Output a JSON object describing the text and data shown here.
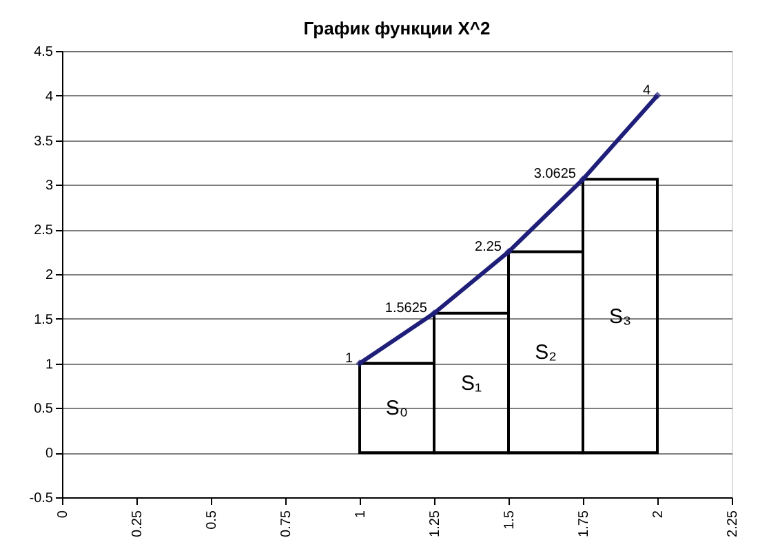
{
  "chart_data": {
    "type": "line",
    "title": "График функции X^2",
    "series": [
      {
        "type": "bar",
        "color": "#000000",
        "x": [
          1.125,
          1.375,
          1.625,
          1.875
        ],
        "values": [
          1,
          1.5625,
          2.25,
          3.0625
        ]
      },
      {
        "color": "#1f1f7a",
        "x": [
          1,
          1.25,
          1.5,
          1.75,
          2
        ],
        "values": [
          1,
          1.5625,
          2.25,
          3.0625,
          4
        ],
        "value_labels": [
          "1",
          "1.5625",
          "2.25",
          "3.0625",
          "4"
        ]
      }
    ],
    "marker": "diamond",
    "line_style": "solid",
    "xlim": [
      0,
      2.25
    ],
    "xticks": [
      0,
      0.25,
      0.5,
      0.75,
      1,
      1.25,
      1.5,
      1.75,
      2,
      2.25
    ],
    "ylim": [
      -0.5,
      4.5
    ],
    "yticks": [
      -0.5,
      0,
      0.5,
      1,
      1.5,
      2,
      2.5,
      3,
      3.5,
      4,
      4.5
    ],
    "grid": "y",
    "annotations": [
      "S₀",
      "S₁",
      "S₂",
      "S₃"
    ]
  }
}
